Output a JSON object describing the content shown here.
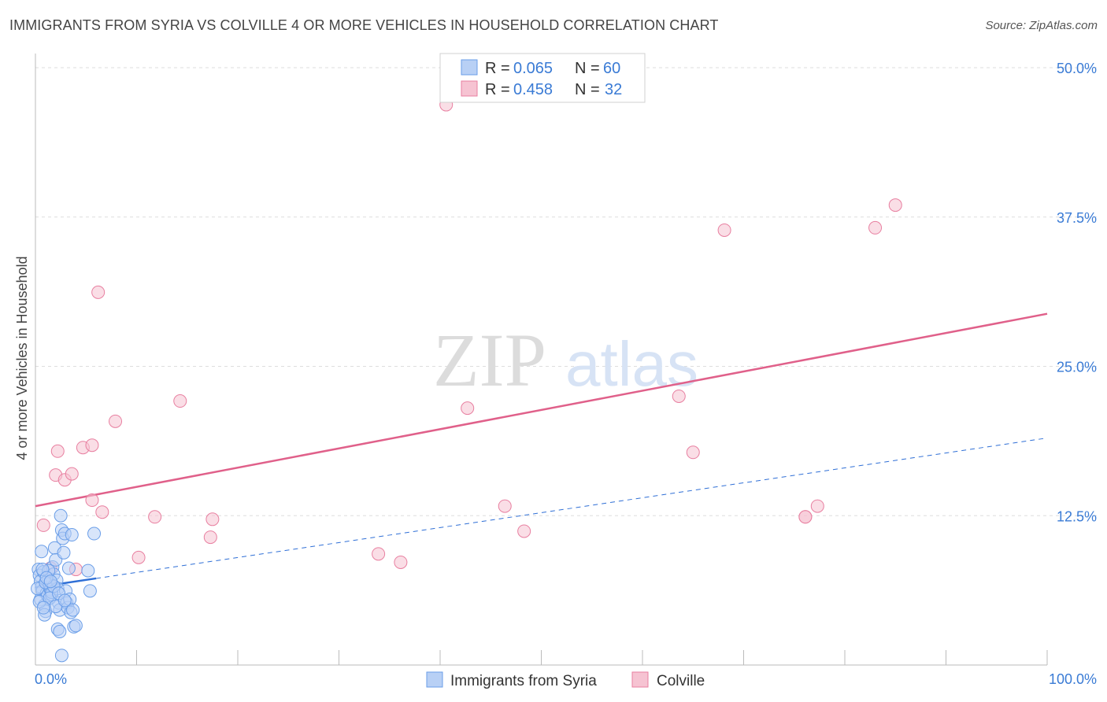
{
  "title": "IMMIGRANTS FROM SYRIA VS COLVILLE 4 OR MORE VEHICLES IN HOUSEHOLD CORRELATION CHART",
  "source": "Source: ZipAtlas.com",
  "watermark": {
    "zip": "ZIP",
    "atlas": "atlas"
  },
  "colors": {
    "blue": "#6a9ee8",
    "blue_fill": "#b8d0f5",
    "pink": "#e87fa0",
    "pink_fill": "#f6c3d2",
    "blue_line": "#2f6fd6",
    "pink_line": "#e0608a",
    "accent_text": "#3a7bd5"
  },
  "chart_data": {
    "type": "scatter",
    "xlabel": "",
    "ylabel": "4 or more Vehicles in Household",
    "xlim": [
      0,
      100
    ],
    "ylim": [
      0,
      50
    ],
    "x_tick_labels": [
      "0.0%",
      "100.0%"
    ],
    "y_ticks": [
      12.5,
      25.0,
      37.5,
      50.0
    ],
    "y_tick_labels": [
      "12.5%",
      "25.0%",
      "37.5%",
      "50.0%"
    ],
    "grid": true,
    "legend_top": [
      {
        "r_label": "R = ",
        "r": "0.065",
        "n_label": "N = ",
        "n": "60"
      },
      {
        "r_label": "R = ",
        "r": "0.458",
        "n_label": "N = ",
        "n": "32"
      }
    ],
    "series": [
      {
        "name": "Immigrants from Syria",
        "color": "#6a9ee8",
        "trend": {
          "x0": 0,
          "y0": 6.5,
          "x1": 100,
          "y1": 19.0,
          "solid_until": 6
        },
        "points": [
          [
            0.3,
            8
          ],
          [
            0.4,
            7.5
          ],
          [
            0.5,
            7
          ],
          [
            0.6,
            6.5
          ],
          [
            0.7,
            6.2
          ],
          [
            0.8,
            7.8
          ],
          [
            0.5,
            5.5
          ],
          [
            0.9,
            5
          ],
          [
            1,
            4.5
          ],
          [
            1.1,
            6
          ],
          [
            1.2,
            5.8
          ],
          [
            1.3,
            7.2
          ],
          [
            1.4,
            6.8
          ],
          [
            1.5,
            6.3
          ],
          [
            1.6,
            5.9
          ],
          [
            1.7,
            8.2
          ],
          [
            1.8,
            7.6
          ],
          [
            0.6,
            9.5
          ],
          [
            1.9,
            9.8
          ],
          [
            2,
            8.8
          ],
          [
            2.1,
            7.1
          ],
          [
            2.2,
            6.4
          ],
          [
            2.3,
            5.2
          ],
          [
            2.4,
            4.6
          ],
          [
            2.5,
            12.5
          ],
          [
            2.6,
            11.3
          ],
          [
            2.7,
            10.6
          ],
          [
            2.8,
            9.4
          ],
          [
            2.9,
            11
          ],
          [
            3,
            6.2
          ],
          [
            3.1,
            5.2
          ],
          [
            3.2,
            4.8
          ],
          [
            3.3,
            8.1
          ],
          [
            3.4,
            5.5
          ],
          [
            3.5,
            4.4
          ],
          [
            3.6,
            10.9
          ],
          [
            3.7,
            4.6
          ],
          [
            0.9,
            4.2
          ],
          [
            1.6,
            6.1
          ],
          [
            1.3,
            7.9
          ],
          [
            2.2,
            3
          ],
          [
            2.4,
            2.8
          ],
          [
            2.6,
            0.8
          ],
          [
            3.8,
            3.2
          ],
          [
            4,
            3.3
          ],
          [
            5.2,
            7.9
          ],
          [
            5.4,
            6.2
          ],
          [
            5.8,
            11.0
          ],
          [
            0.2,
            6.4
          ],
          [
            0.4,
            5.3
          ],
          [
            0.7,
            8.0
          ],
          [
            1.0,
            6.9
          ],
          [
            1.4,
            5.6
          ],
          [
            1.8,
            6.6
          ],
          [
            2.0,
            4.9
          ],
          [
            2.3,
            6.0
          ],
          [
            0.8,
            4.8
          ],
          [
            1.1,
            7.3
          ],
          [
            1.5,
            7.0
          ],
          [
            2.9,
            5.4
          ]
        ]
      },
      {
        "name": "Colville",
        "color": "#e87fa0",
        "trend": {
          "x0": 0,
          "y0": 13.3,
          "x1": 100,
          "y1": 29.4
        },
        "points": [
          [
            40.6,
            46.9
          ],
          [
            6.2,
            31.2
          ],
          [
            85.0,
            38.5
          ],
          [
            83.0,
            36.6
          ],
          [
            68.1,
            36.4
          ],
          [
            14.3,
            22.1
          ],
          [
            7.9,
            20.4
          ],
          [
            42.7,
            21.5
          ],
          [
            63.6,
            22.5
          ],
          [
            65.0,
            17.8
          ],
          [
            2.2,
            17.9
          ],
          [
            4.7,
            18.2
          ],
          [
            5.6,
            18.4
          ],
          [
            2.0,
            15.9
          ],
          [
            2.9,
            15.5
          ],
          [
            3.6,
            16.0
          ],
          [
            5.6,
            13.8
          ],
          [
            6.6,
            12.8
          ],
          [
            11.8,
            12.4
          ],
          [
            17.5,
            12.2
          ],
          [
            17.3,
            10.7
          ],
          [
            0.8,
            11.7
          ],
          [
            1.5,
            8.1
          ],
          [
            4.0,
            8.0
          ],
          [
            10.2,
            9.0
          ],
          [
            33.9,
            9.3
          ],
          [
            36.1,
            8.6
          ],
          [
            46.4,
            13.3
          ],
          [
            48.3,
            11.2
          ],
          [
            76.1,
            12.4
          ],
          [
            76.1,
            12.4
          ],
          [
            77.3,
            13.3
          ]
        ]
      }
    ]
  }
}
